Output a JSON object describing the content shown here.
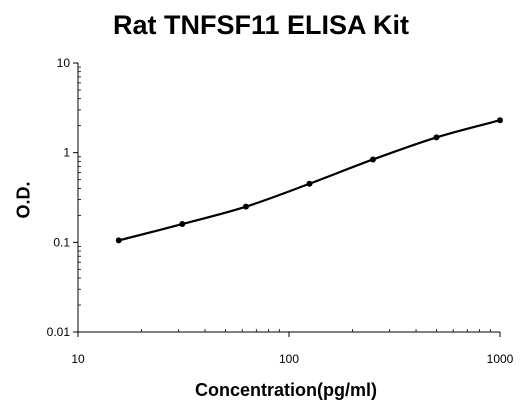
{
  "chart_data": {
    "type": "line",
    "title": "Rat TNFSF11 ELISA Kit",
    "xlabel": "Concentration(pg/ml)",
    "ylabel": "O.D.",
    "x_scale": "log",
    "y_scale": "log",
    "xlim": [
      10,
      1000
    ],
    "ylim": [
      0.01,
      10
    ],
    "x_ticks": [
      "10",
      "100",
      "1000"
    ],
    "y_ticks": [
      "10",
      "1",
      "0.1",
      "0.01"
    ],
    "grid": false,
    "legend": "none",
    "series": [
      {
        "x": [
          15.6,
          31.2,
          62.5,
          125,
          250,
          500,
          1000
        ],
        "y": [
          0.105,
          0.16,
          0.25,
          0.45,
          0.84,
          1.48,
          2.3
        ],
        "color": "#000000",
        "marker": "circle"
      }
    ]
  }
}
